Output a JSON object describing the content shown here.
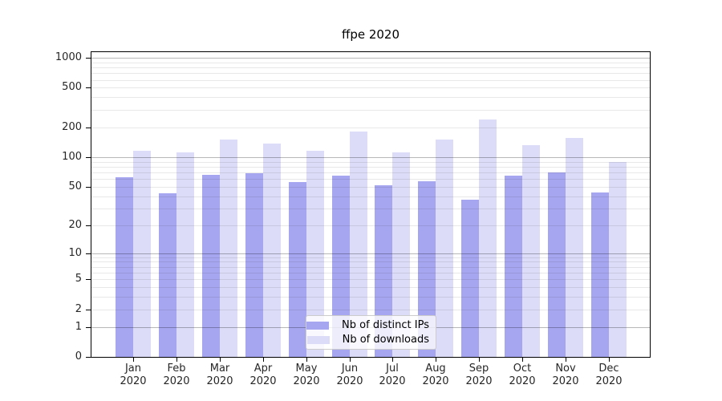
{
  "chart_data": {
    "type": "bar",
    "title": "ffpe 2020",
    "categories": [
      "Jan",
      "Feb",
      "Mar",
      "Apr",
      "May",
      "Jun",
      "Jul",
      "Aug",
      "Sep",
      "Oct",
      "Nov",
      "Dec"
    ],
    "category_year": "2020",
    "series": [
      {
        "name": "Nb of distinct IPs",
        "color": "#a6a6f0",
        "values": [
          62,
          43,
          66,
          69,
          56,
          65,
          52,
          57,
          37,
          65,
          70,
          44
        ]
      },
      {
        "name": "Nb of downloads",
        "color": "#dcdcf8",
        "values": [
          116,
          112,
          150,
          138,
          116,
          182,
          112,
          150,
          240,
          133,
          155,
          90
        ]
      }
    ],
    "yscale": "log1p",
    "y_ticks": [
      0,
      1,
      2,
      5,
      10,
      20,
      50,
      100,
      200,
      500,
      1000
    ],
    "y_major_gridlines": [
      1,
      10,
      100,
      1000
    ],
    "ylim": [
      0,
      1140
    ],
    "grid": true,
    "legend_position": "lower-center",
    "xlabel": "",
    "ylabel": ""
  }
}
